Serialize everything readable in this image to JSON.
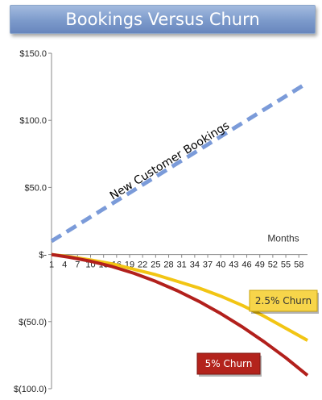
{
  "chart_data": {
    "type": "line",
    "title": "Bookings Versus Churn",
    "xlabel": "Months",
    "ylabel": "",
    "x_ticks": [
      1,
      4,
      7,
      10,
      13,
      16,
      19,
      22,
      25,
      28,
      31,
      34,
      37,
      40,
      43,
      46,
      49,
      52,
      55,
      58
    ],
    "xlim": [
      1,
      60
    ],
    "ylim": [
      -100,
      150
    ],
    "y_ticks": [
      {
        "value": 150,
        "label": "$150.0"
      },
      {
        "value": 100,
        "label": "$100.0"
      },
      {
        "value": 50,
        "label": "$50.0"
      },
      {
        "value": 0,
        "label": "$-"
      },
      {
        "value": -50,
        "label": "$(50.0)"
      },
      {
        "value": -100,
        "label": "$(100.0)"
      }
    ],
    "grid": false,
    "series": [
      {
        "name": "New Customer Bookings",
        "color": "#7b9bd9",
        "style": "dashed",
        "x": [
          1,
          60
        ],
        "y": [
          10,
          128
        ]
      },
      {
        "name": "2.5% Churn",
        "color": "#f2c514",
        "style": "solid",
        "x": [
          1,
          5,
          10,
          15,
          20,
          25,
          30,
          35,
          40,
          45,
          50,
          55,
          60
        ],
        "y": [
          0,
          -1.5,
          -4,
          -7,
          -11,
          -15,
          -20,
          -25,
          -31,
          -38,
          -46,
          -55,
          -64
        ]
      },
      {
        "name": "5% Churn",
        "color": "#b2201c",
        "style": "solid",
        "x": [
          1,
          5,
          10,
          15,
          20,
          25,
          30,
          35,
          40,
          45,
          50,
          55,
          60
        ],
        "y": [
          0,
          -2,
          -5,
          -9,
          -14,
          -20,
          -27,
          -35,
          -44,
          -54,
          -65,
          -77,
          -90
        ]
      }
    ],
    "annotations": {
      "bookings_label": "New Customer Bookings",
      "churn25_label": "2.5% Churn",
      "churn5_label": "5% Churn"
    }
  }
}
